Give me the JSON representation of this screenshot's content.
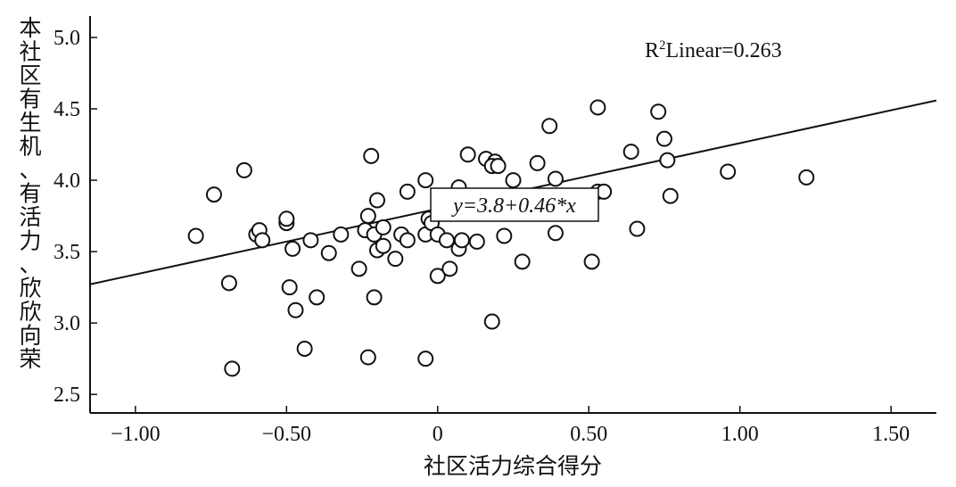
{
  "chart_data": {
    "type": "scatter",
    "title": "",
    "xlabel": "社区活力综合得分",
    "ylabel": "本社区有生机、有活力、欣欣向荣",
    "xlim": [
      -1.15,
      1.65
    ],
    "ylim": [
      2.37,
      5.15
    ],
    "x_ticks": [
      -1.0,
      -0.5,
      0,
      0.5,
      1.0,
      1.5
    ],
    "x_tick_labels": [
      "−1.00",
      "−0.50",
      "0",
      "0.50",
      "1.00",
      "1.50"
    ],
    "y_ticks": [
      2.5,
      3.0,
      3.5,
      4.0,
      4.5,
      5.0
    ],
    "y_tick_labels": [
      "2.5",
      "3.0",
      "3.5",
      "4.0",
      "4.5",
      "5.0"
    ],
    "grid": false,
    "r2_prefix": "R",
    "r2_sup": "2",
    "r2_suffix": "Linear=0.263",
    "equation": "y=3.8+0.46*x",
    "fit_line": {
      "intercept": 3.8,
      "slope": 0.46
    },
    "points": [
      {
        "x": -0.8,
        "y": 3.61
      },
      {
        "x": -0.74,
        "y": 3.9
      },
      {
        "x": -0.64,
        "y": 4.07
      },
      {
        "x": -0.69,
        "y": 3.28
      },
      {
        "x": -0.68,
        "y": 2.68
      },
      {
        "x": -0.6,
        "y": 3.62
      },
      {
        "x": -0.59,
        "y": 3.65
      },
      {
        "x": -0.58,
        "y": 3.58
      },
      {
        "x": -0.5,
        "y": 3.7
      },
      {
        "x": -0.5,
        "y": 3.73
      },
      {
        "x": -0.48,
        "y": 3.52
      },
      {
        "x": -0.49,
        "y": 3.25
      },
      {
        "x": -0.47,
        "y": 3.09
      },
      {
        "x": -0.44,
        "y": 2.82
      },
      {
        "x": -0.42,
        "y": 3.58
      },
      {
        "x": -0.4,
        "y": 3.18
      },
      {
        "x": -0.36,
        "y": 3.49
      },
      {
        "x": -0.32,
        "y": 3.62
      },
      {
        "x": -0.26,
        "y": 3.38
      },
      {
        "x": -0.24,
        "y": 3.65
      },
      {
        "x": -0.23,
        "y": 3.75
      },
      {
        "x": -0.22,
        "y": 4.17
      },
      {
        "x": -0.21,
        "y": 3.62
      },
      {
        "x": -0.2,
        "y": 3.51
      },
      {
        "x": -0.2,
        "y": 3.86
      },
      {
        "x": -0.18,
        "y": 3.67
      },
      {
        "x": -0.18,
        "y": 3.54
      },
      {
        "x": -0.21,
        "y": 3.18
      },
      {
        "x": -0.23,
        "y": 2.76
      },
      {
        "x": -0.14,
        "y": 3.45
      },
      {
        "x": -0.12,
        "y": 3.62
      },
      {
        "x": -0.1,
        "y": 3.58
      },
      {
        "x": -0.1,
        "y": 3.92
      },
      {
        "x": -0.04,
        "y": 4.0
      },
      {
        "x": -0.04,
        "y": 3.62
      },
      {
        "x": -0.03,
        "y": 3.73
      },
      {
        "x": -0.02,
        "y": 3.7
      },
      {
        "x": 0.0,
        "y": 3.62
      },
      {
        "x": -0.04,
        "y": 2.75
      },
      {
        "x": 0.0,
        "y": 3.33
      },
      {
        "x": 0.03,
        "y": 3.58
      },
      {
        "x": 0.04,
        "y": 3.38
      },
      {
        "x": 0.07,
        "y": 3.52
      },
      {
        "x": 0.08,
        "y": 3.58
      },
      {
        "x": 0.07,
        "y": 3.95
      },
      {
        "x": 0.1,
        "y": 4.18
      },
      {
        "x": 0.13,
        "y": 3.57
      },
      {
        "x": 0.16,
        "y": 4.15
      },
      {
        "x": 0.19,
        "y": 4.13
      },
      {
        "x": 0.18,
        "y": 4.1
      },
      {
        "x": 0.2,
        "y": 4.1
      },
      {
        "x": 0.18,
        "y": 3.01
      },
      {
        "x": 0.22,
        "y": 3.61
      },
      {
        "x": 0.25,
        "y": 4.0
      },
      {
        "x": 0.28,
        "y": 3.43
      },
      {
        "x": 0.33,
        "y": 4.12
      },
      {
        "x": 0.37,
        "y": 4.38
      },
      {
        "x": 0.39,
        "y": 4.01
      },
      {
        "x": 0.39,
        "y": 3.63
      },
      {
        "x": 0.51,
        "y": 3.43
      },
      {
        "x": 0.53,
        "y": 4.51
      },
      {
        "x": 0.53,
        "y": 3.92
      },
      {
        "x": 0.55,
        "y": 3.92
      },
      {
        "x": 0.64,
        "y": 4.2
      },
      {
        "x": 0.66,
        "y": 3.66
      },
      {
        "x": 0.73,
        "y": 4.48
      },
      {
        "x": 0.75,
        "y": 4.29
      },
      {
        "x": 0.76,
        "y": 4.14
      },
      {
        "x": 0.77,
        "y": 3.89
      },
      {
        "x": 0.96,
        "y": 4.06
      },
      {
        "x": 1.22,
        "y": 4.02
      }
    ]
  }
}
